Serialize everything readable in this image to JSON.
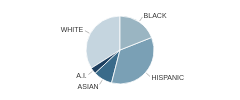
{
  "chart_data": {
    "type": "pie",
    "categories": [
      "WHITE",
      "A.I.",
      "ASIAN",
      "HISPANIC",
      "BLACK"
    ],
    "values": [
      34,
      3,
      9,
      35,
      19
    ],
    "colors": [
      "#c5d5df",
      "#1e4060",
      "#3a6b8a",
      "#7aa0b5",
      "#9ab5c2"
    ]
  }
}
